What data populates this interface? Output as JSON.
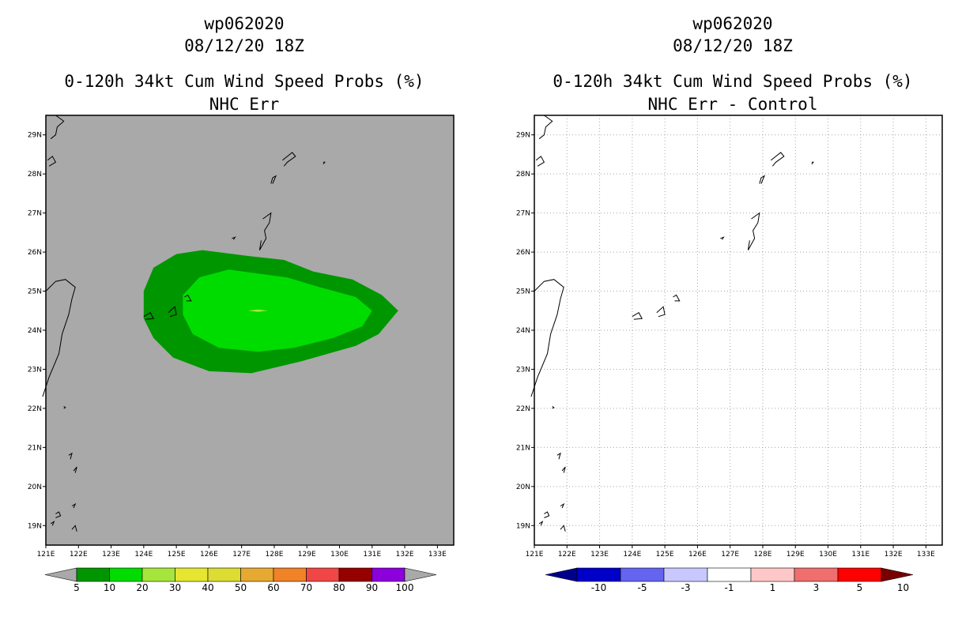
{
  "chart_data": [
    {
      "type": "heatmap",
      "title_lines": [
        "wp062020",
        "08/12/20 18Z",
        "0-120h 34kt Cum Wind Speed Probs (%)",
        "NHC Err"
      ],
      "xlim": [
        121,
        133.5
      ],
      "ylim": [
        18.5,
        29.5
      ],
      "x_ticks": [
        121,
        122,
        123,
        124,
        125,
        126,
        127,
        128,
        129,
        130,
        131,
        132,
        133
      ],
      "x_tick_labels": [
        "121E",
        "122E",
        "123E",
        "124E",
        "125E",
        "126E",
        "127E",
        "128E",
        "129E",
        "130E",
        "131E",
        "132E",
        "133E"
      ],
      "y_ticks": [
        19,
        20,
        21,
        22,
        23,
        24,
        25,
        26,
        27,
        28,
        29
      ],
      "y_tick_labels": [
        "19N",
        "20N",
        "21N",
        "22N",
        "23N",
        "24N",
        "25N",
        "26N",
        "27N",
        "28N",
        "29N"
      ],
      "grid": false,
      "background": "#a9a9a9",
      "contours": [
        {
          "level": "5-10",
          "color": "#009600",
          "polygon": [
            [
              124.0,
              25.0
            ],
            [
              124.3,
              25.6
            ],
            [
              125.0,
              25.95
            ],
            [
              125.8,
              26.05
            ],
            [
              127.2,
              25.9
            ],
            [
              128.3,
              25.8
            ],
            [
              129.2,
              25.5
            ],
            [
              130.4,
              25.3
            ],
            [
              131.3,
              24.9
            ],
            [
              131.8,
              24.5
            ],
            [
              131.2,
              23.9
            ],
            [
              130.5,
              23.6
            ],
            [
              128.8,
              23.2
            ],
            [
              127.3,
              22.9
            ],
            [
              126.0,
              22.95
            ],
            [
              124.9,
              23.3
            ],
            [
              124.3,
              23.8
            ],
            [
              124.0,
              24.3
            ]
          ]
        },
        {
          "level": "10-20",
          "color": "#00dc00",
          "polygon": [
            [
              125.2,
              24.9
            ],
            [
              125.7,
              25.35
            ],
            [
              126.6,
              25.55
            ],
            [
              127.5,
              25.45
            ],
            [
              128.4,
              25.35
            ],
            [
              129.4,
              25.1
            ],
            [
              130.5,
              24.85
            ],
            [
              131.0,
              24.5
            ],
            [
              130.7,
              24.1
            ],
            [
              129.8,
              23.8
            ],
            [
              128.6,
              23.55
            ],
            [
              127.5,
              23.45
            ],
            [
              126.3,
              23.55
            ],
            [
              125.5,
              23.9
            ],
            [
              125.2,
              24.4
            ]
          ]
        },
        {
          "level": "20-30",
          "color": "#a6e63c",
          "polygon": [
            [
              127.2,
              24.5
            ],
            [
              127.5,
              24.53
            ],
            [
              127.8,
              24.5
            ],
            [
              127.5,
              24.47
            ]
          ]
        }
      ],
      "colorbar": {
        "levels": [
          "5",
          "10",
          "20",
          "30",
          "40",
          "50",
          "60",
          "70",
          "80",
          "90",
          "100"
        ],
        "colors": [
          "#009600",
          "#00dc00",
          "#a6e63c",
          "#e6e632",
          "#dcdc32",
          "#e6aa32",
          "#f08228",
          "#f04646",
          "#960000",
          "#8c00dc"
        ],
        "under_color": "#a9a9a9",
        "over_color": "#a9a9a9"
      }
    },
    {
      "type": "heatmap",
      "title_lines": [
        "wp062020",
        "08/12/20 18Z",
        "0-120h 34kt Cum Wind Speed Probs (%)",
        "NHC Err - Control"
      ],
      "xlim": [
        121,
        133.5
      ],
      "ylim": [
        18.5,
        29.5
      ],
      "x_ticks": [
        121,
        122,
        123,
        124,
        125,
        126,
        127,
        128,
        129,
        130,
        131,
        132,
        133
      ],
      "x_tick_labels": [
        "121E",
        "122E",
        "123E",
        "124E",
        "125E",
        "126E",
        "127E",
        "128E",
        "129E",
        "130E",
        "131E",
        "132E",
        "133E"
      ],
      "y_ticks": [
        19,
        20,
        21,
        22,
        23,
        24,
        25,
        26,
        27,
        28,
        29
      ],
      "y_tick_labels": [
        "19N",
        "20N",
        "21N",
        "22N",
        "23N",
        "24N",
        "25N",
        "26N",
        "27N",
        "28N",
        "29N"
      ],
      "grid": true,
      "background": "#ffffff",
      "contours": [],
      "colorbar": {
        "levels": [
          "-10",
          "-5",
          "-3",
          "-1",
          "1",
          "3",
          "5",
          "10"
        ],
        "colors": [
          "#0000c8",
          "#6464f0",
          "#c8c8ff",
          "#ffffff",
          "#ffc8c8",
          "#f06e6e",
          "#ff0000"
        ],
        "under_color": "#00008c",
        "over_color": "#780000"
      }
    }
  ]
}
